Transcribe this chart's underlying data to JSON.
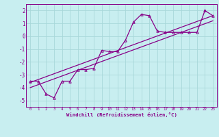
{
  "bg_color": "#c8eef0",
  "grid_color": "#a8d8da",
  "line_color": "#880088",
  "xlabel": "Windchill (Refroidissement éolien,°C)",
  "xlim": [
    -0.5,
    23.5
  ],
  "ylim": [
    -5.5,
    2.5
  ],
  "yticks": [
    -5,
    -4,
    -3,
    -2,
    -1,
    0,
    1,
    2
  ],
  "xticks": [
    0,
    1,
    2,
    3,
    4,
    5,
    6,
    7,
    8,
    9,
    10,
    11,
    12,
    13,
    14,
    15,
    16,
    17,
    18,
    19,
    20,
    21,
    22,
    23
  ],
  "line1_x": [
    0,
    1,
    2,
    3,
    4,
    5,
    6,
    7,
    8,
    9,
    10,
    11,
    12,
    13,
    14,
    15,
    16,
    17,
    18,
    19,
    20,
    21,
    22,
    23
  ],
  "line1_y": [
    -3.5,
    -3.5,
    -4.5,
    -4.8,
    -3.5,
    -3.5,
    -2.6,
    -2.6,
    -2.5,
    -1.1,
    -1.2,
    -1.2,
    -0.3,
    1.1,
    1.7,
    1.6,
    0.4,
    0.3,
    0.3,
    0.3,
    0.3,
    0.3,
    2.0,
    1.6
  ],
  "line2_x": [
    0,
    23
  ],
  "line2_y": [
    -3.6,
    1.6
  ],
  "line3_x": [
    0,
    23
  ],
  "line3_y": [
    -4.0,
    1.2
  ]
}
